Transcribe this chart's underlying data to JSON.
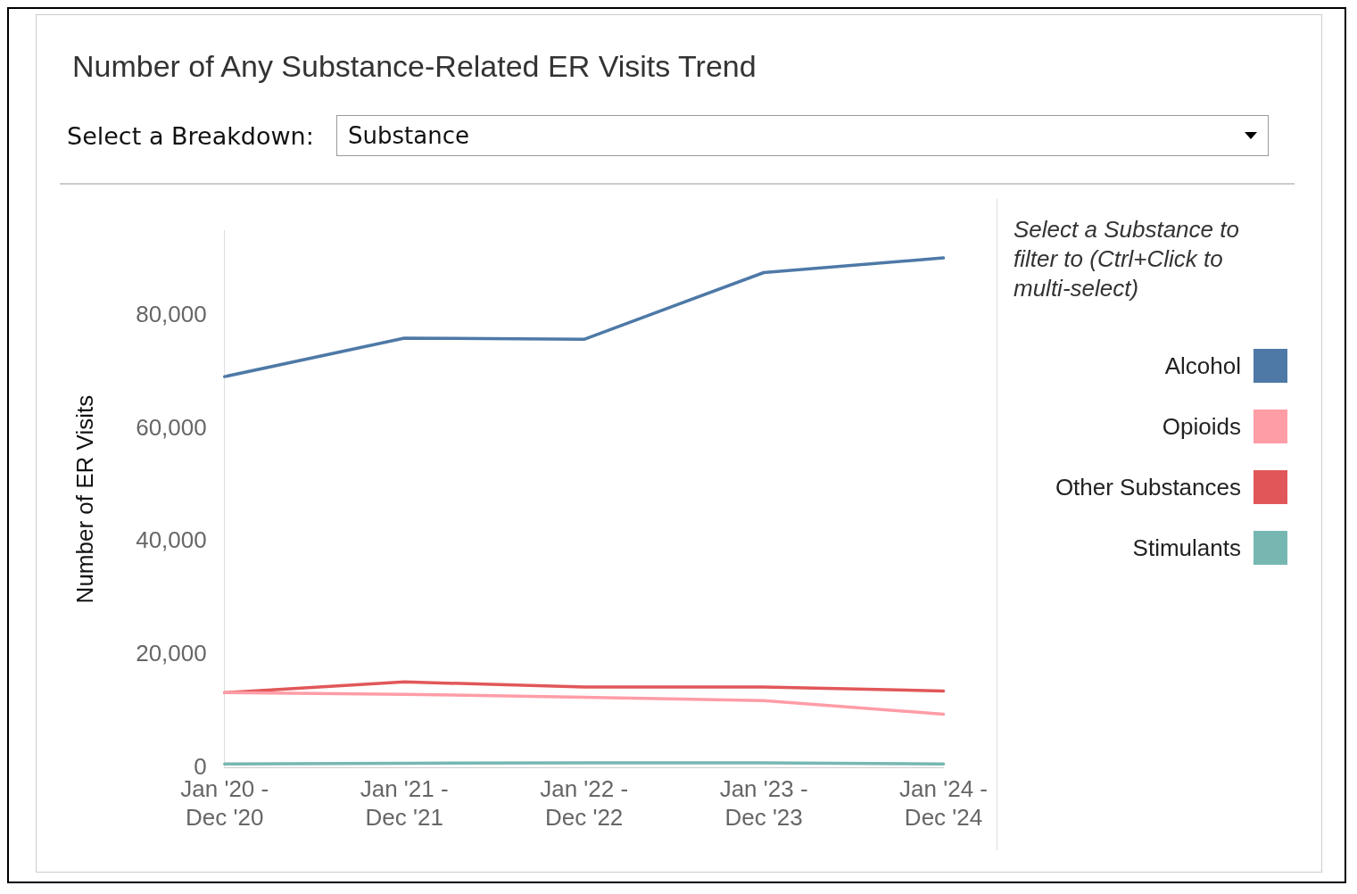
{
  "chart_data": {
    "type": "line",
    "title": "Number of Any Substance-Related ER Visits Trend",
    "ylabel": "Number of ER Visits",
    "legend_title": "Select a Substance to filter to (Ctrl+Click to multi-select)",
    "annotations": [
      "Select a Breakdown:",
      "Substance"
    ],
    "categories": [
      "Jan '20 - Dec '20",
      "Jan '21 - Dec '21",
      "Jan '22 - Dec '22",
      "Jan '23 - Dec '23",
      "Jan '24 - Dec '24"
    ],
    "series": [
      {
        "name": "Alcohol",
        "color": "#4e79a7",
        "values": [
          69200,
          76000,
          75800,
          87600,
          90200
        ]
      },
      {
        "name": "Opioids",
        "color": "#ff9da7",
        "values": [
          13300,
          13000,
          12500,
          11900,
          9500
        ]
      },
      {
        "name": "Other Substances",
        "color": "#e15759",
        "values": [
          13300,
          15200,
          14300,
          14300,
          13600
        ]
      },
      {
        "name": "Stimulants",
        "color": "#76b7b2",
        "values": [
          700,
          800,
          900,
          900,
          700
        ]
      }
    ],
    "ylim": [
      0,
      95000
    ],
    "yticks": [
      {
        "value": 0,
        "label": "0"
      },
      {
        "value": 20000,
        "label": "20,000"
      },
      {
        "value": 40000,
        "label": "40,000"
      },
      {
        "value": 60000,
        "label": "60,000"
      },
      {
        "value": 80000,
        "label": "80,000"
      }
    ],
    "grid": false,
    "legend": "right",
    "marker": "none",
    "line_style": "solid"
  }
}
